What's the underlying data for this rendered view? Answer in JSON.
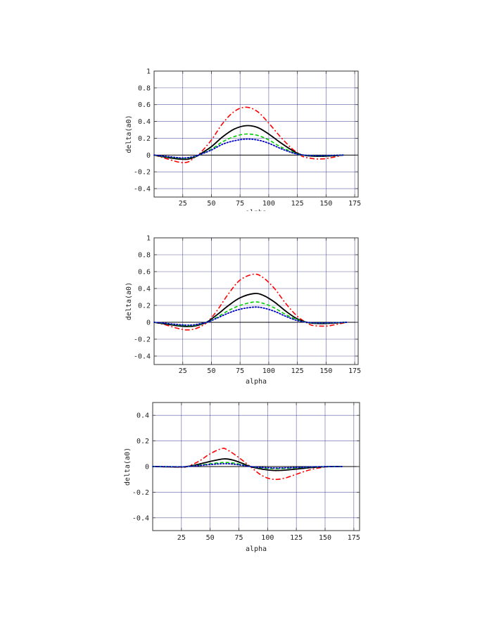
{
  "chart_data": [
    {
      "type": "line",
      "xlabel": "alpha",
      "ylabel": "delta(a0)",
      "xlim": [
        0,
        178
      ],
      "ylim": [
        -0.5,
        1.0
      ],
      "grid": true,
      "xticks": [
        25,
        50,
        75,
        100,
        125,
        150,
        175
      ],
      "xtick_labels": [
        "25",
        "50",
        "75",
        "100",
        "125",
        "150",
        "175"
      ],
      "yticks": [
        -0.4,
        -0.2,
        0,
        0.2,
        0.4,
        0.6,
        0.8,
        1
      ],
      "ytick_labels": [
        "-0.4",
        "-0.2",
        "0",
        "0.2",
        "0.4",
        "0.6",
        "0.8",
        "1"
      ],
      "series": [
        {
          "style": "dash-dot",
          "color": "#ff0000",
          "x": [
            0,
            10,
            20,
            25,
            30,
            36,
            40,
            50,
            60,
            70,
            80,
            90,
            100,
            110,
            120,
            127,
            130,
            140,
            148,
            155,
            165
          ],
          "y": [
            0,
            -0.04,
            -0.08,
            -0.09,
            -0.08,
            -0.02,
            0.02,
            0.18,
            0.38,
            0.52,
            0.57,
            0.52,
            0.38,
            0.22,
            0.08,
            0.01,
            -0.02,
            -0.045,
            -0.045,
            -0.03,
            0
          ]
        },
        {
          "style": "solid",
          "color": "#000000",
          "x": [
            0,
            10,
            20,
            25,
            30,
            37,
            40,
            50,
            60,
            70,
            80,
            90,
            100,
            110,
            120,
            127,
            135,
            145,
            155,
            165
          ],
          "y": [
            0,
            -0.025,
            -0.045,
            -0.05,
            -0.048,
            -0.015,
            0.01,
            0.1,
            0.22,
            0.31,
            0.35,
            0.33,
            0.25,
            0.15,
            0.06,
            0.01,
            -0.01,
            -0.015,
            -0.01,
            0
          ]
        },
        {
          "style": "dashed",
          "color": "#00cc00",
          "x": [
            0,
            10,
            20,
            25,
            30,
            37,
            40,
            50,
            60,
            70,
            80,
            90,
            100,
            110,
            120,
            127,
            135,
            145,
            155,
            165
          ],
          "y": [
            0,
            -0.02,
            -0.035,
            -0.04,
            -0.035,
            -0.012,
            0.005,
            0.07,
            0.16,
            0.22,
            0.25,
            0.235,
            0.18,
            0.1,
            0.04,
            0.005,
            -0.005,
            -0.01,
            -0.005,
            0
          ]
        },
        {
          "style": "dotted",
          "color": "#0000cc",
          "x": [
            0,
            10,
            20,
            25,
            30,
            37,
            40,
            50,
            60,
            70,
            80,
            90,
            100,
            110,
            120,
            127,
            135,
            145,
            155,
            165
          ],
          "y": [
            0,
            -0.015,
            -0.03,
            -0.035,
            -0.03,
            -0.01,
            0.005,
            0.06,
            0.13,
            0.17,
            0.19,
            0.18,
            0.14,
            0.08,
            0.03,
            0.005,
            -0.004,
            -0.008,
            -0.004,
            0
          ]
        }
      ]
    },
    {
      "type": "line",
      "xlabel": "alpha",
      "ylabel": "delta(a0)",
      "xlim": [
        0,
        178
      ],
      "ylim": [
        -0.5,
        1.0
      ],
      "grid": true,
      "xticks": [
        25,
        50,
        75,
        100,
        125,
        150,
        175
      ],
      "xtick_labels": [
        "25",
        "50",
        "75",
        "100",
        "125",
        "150",
        "175"
      ],
      "yticks": [
        -0.4,
        -0.2,
        0,
        0.2,
        0.4,
        0.6,
        0.8,
        1
      ],
      "ytick_labels": [
        "-0.4",
        "-0.2",
        "0",
        "0.2",
        "0.4",
        "0.6",
        "0.8",
        "1"
      ],
      "series": [
        {
          "style": "dash-dot",
          "color": "#ff0000",
          "x": [
            0,
            10,
            20,
            28,
            35,
            42,
            47,
            55,
            65,
            75,
            87,
            95,
            105,
            115,
            125,
            135,
            140,
            150,
            157,
            168
          ],
          "y": [
            0,
            -0.03,
            -0.07,
            -0.09,
            -0.08,
            -0.04,
            0.01,
            0.14,
            0.34,
            0.5,
            0.57,
            0.53,
            0.4,
            0.22,
            0.07,
            -0.02,
            -0.04,
            -0.045,
            -0.03,
            0
          ]
        },
        {
          "style": "solid",
          "color": "#000000",
          "x": [
            0,
            10,
            20,
            28,
            35,
            42,
            47,
            55,
            65,
            75,
            87,
            95,
            105,
            115,
            125,
            135,
            145,
            155,
            168
          ],
          "y": [
            0,
            -0.02,
            -0.04,
            -0.05,
            -0.045,
            -0.02,
            0.01,
            0.09,
            0.2,
            0.29,
            0.34,
            0.32,
            0.24,
            0.13,
            0.04,
            -0.005,
            -0.015,
            -0.01,
            0
          ]
        },
        {
          "style": "dashed",
          "color": "#00cc00",
          "x": [
            0,
            10,
            20,
            28,
            35,
            42,
            47,
            55,
            65,
            75,
            87,
            95,
            105,
            115,
            125,
            135,
            145,
            155,
            168
          ],
          "y": [
            0,
            -0.015,
            -0.032,
            -0.04,
            -0.036,
            -0.015,
            0.005,
            0.06,
            0.14,
            0.2,
            0.24,
            0.225,
            0.17,
            0.09,
            0.03,
            -0.003,
            -0.01,
            -0.006,
            0
          ]
        },
        {
          "style": "dotted",
          "color": "#0000cc",
          "x": [
            0,
            10,
            20,
            28,
            35,
            42,
            47,
            55,
            65,
            75,
            87,
            95,
            105,
            115,
            125,
            135,
            145,
            155,
            168
          ],
          "y": [
            0,
            -0.012,
            -0.026,
            -0.033,
            -0.03,
            -0.012,
            0.004,
            0.05,
            0.11,
            0.155,
            0.18,
            0.17,
            0.13,
            0.07,
            0.02,
            -0.002,
            -0.008,
            -0.005,
            0
          ]
        }
      ]
    },
    {
      "type": "line",
      "xlabel": "alpha",
      "ylabel": "delta(a0)",
      "xlim": [
        0,
        180
      ],
      "ylim": [
        -0.5,
        0.5
      ],
      "grid": true,
      "xticks": [
        25,
        50,
        75,
        100,
        125,
        150,
        175
      ],
      "xtick_labels": [
        "25",
        "50",
        "75",
        "100",
        "125",
        "150",
        "175"
      ],
      "yticks": [
        -0.4,
        -0.2,
        0,
        0.2,
        0.4
      ],
      "ytick_labels": [
        "-0.4",
        "-0.2",
        "0",
        "0.2",
        "0.4"
      ],
      "series": [
        {
          "style": "dash-dot",
          "color": "#ff0000",
          "x": [
            0,
            15,
            25,
            30,
            40,
            50,
            60,
            65,
            75,
            85,
            95,
            105,
            115,
            125,
            135,
            145,
            155,
            165
          ],
          "y": [
            0,
            -0.003,
            -0.005,
            0.0,
            0.04,
            0.1,
            0.14,
            0.13,
            0.07,
            0.0,
            -0.07,
            -0.1,
            -0.09,
            -0.06,
            -0.03,
            -0.01,
            0.0,
            0
          ]
        },
        {
          "style": "solid",
          "color": "#000000",
          "x": [
            0,
            15,
            25,
            30,
            40,
            50,
            62,
            70,
            78,
            85,
            95,
            105,
            115,
            125,
            135,
            145,
            155,
            165
          ],
          "y": [
            0,
            -0.002,
            -0.003,
            0.0,
            0.018,
            0.04,
            0.06,
            0.05,
            0.025,
            0.0,
            -0.02,
            -0.03,
            -0.028,
            -0.02,
            -0.01,
            -0.004,
            0.0,
            0
          ]
        },
        {
          "style": "dashed",
          "color": "#00cc00",
          "x": [
            0,
            15,
            25,
            30,
            40,
            50,
            62,
            70,
            78,
            85,
            95,
            105,
            115,
            125,
            135,
            145,
            155,
            165
          ],
          "y": [
            0,
            -0.001,
            -0.002,
            0.0,
            0.01,
            0.022,
            0.032,
            0.028,
            0.014,
            0.0,
            -0.01,
            -0.016,
            -0.015,
            -0.01,
            -0.005,
            -0.002,
            0.0,
            0
          ]
        },
        {
          "style": "dotted",
          "color": "#0000cc",
          "x": [
            0,
            15,
            25,
            30,
            40,
            50,
            62,
            70,
            78,
            85,
            95,
            105,
            115,
            125,
            135,
            145,
            155,
            165
          ],
          "y": [
            0,
            -0.001,
            -0.002,
            0.0,
            0.007,
            0.016,
            0.022,
            0.019,
            0.01,
            0.0,
            -0.007,
            -0.011,
            -0.01,
            -0.007,
            -0.004,
            -0.001,
            0.0,
            0
          ]
        }
      ]
    }
  ]
}
